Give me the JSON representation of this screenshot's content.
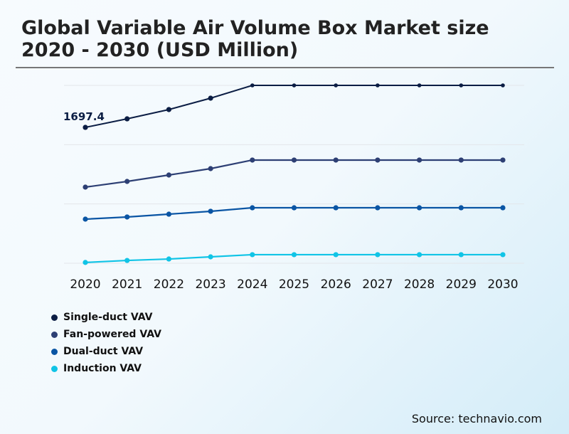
{
  "title": "Global Variable Air Volume Box Market size 2020 - 2030 (USD Million)",
  "source": "Source: technavio.com",
  "chart_data": {
    "type": "line",
    "title": "Global Variable Air Volume Box Market size 2020 - 2030 (USD Million)",
    "categories": [
      "2020",
      "2021",
      "2022",
      "2023",
      "2024",
      "2025",
      "2026",
      "2027",
      "2028",
      "2029",
      "2030"
    ],
    "ylim": [
      0,
      2222
    ],
    "grid": true,
    "legend_placement": "bottom-left",
    "annotations": [
      {
        "series": "Single-duct VAV",
        "x": "2020",
        "label": "1697.4"
      }
    ],
    "series": [
      {
        "name": "Single-duct VAV",
        "color": "#0b1d44",
        "values": [
          1697.4,
          1804,
          1920,
          2062,
          2222,
          2222,
          2222,
          2222,
          2222,
          2222,
          2222
        ]
      },
      {
        "name": "Fan-powered VAV",
        "color": "#2d3f74",
        "values": [
          951,
          1022,
          1102,
          1182,
          1289,
          1289,
          1289,
          1289,
          1289,
          1289,
          1289
        ]
      },
      {
        "name": "Dual-duct VAV",
        "color": "#0a55a4",
        "values": [
          551,
          578,
          613,
          649,
          693,
          693,
          693,
          693,
          693,
          693,
          693
        ]
      },
      {
        "name": "Induction VAV",
        "color": "#10c4e6",
        "values": [
          10,
          35,
          53,
          80,
          107,
          107,
          107,
          107,
          107,
          107,
          107
        ]
      }
    ]
  }
}
